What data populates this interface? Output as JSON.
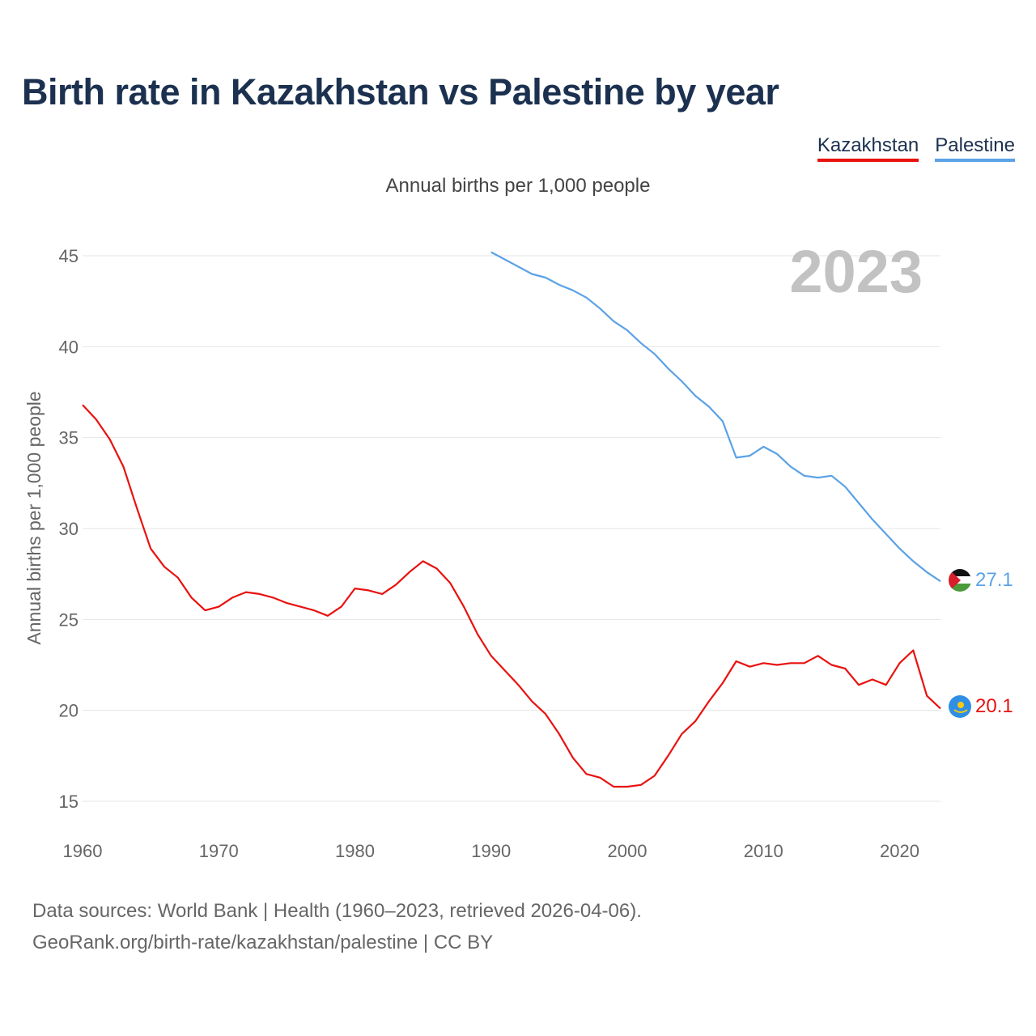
{
  "title": "Birth rate in Kazakhstan vs Palestine by year",
  "legend": [
    {
      "name": "Kazakhstan",
      "color": "#e8120f"
    },
    {
      "name": "Palestine",
      "color": "#5ba2e6"
    }
  ],
  "subtitle": "Annual births per 1,000 people",
  "sources": {
    "line1": "Data sources: World Bank | Health (1960–2023, retrieved 2026-04-06).",
    "line2": "GeoRank.org/birth-rate/kazakhstan/palestine | CC BY"
  },
  "chart_data": {
    "type": "line",
    "title": "Birth rate in Kazakhstan vs Palestine by year",
    "subtitle": "Annual births per 1,000 people",
    "xlabel": "",
    "ylabel": "Annual births per 1,000 people",
    "xlim": [
      1960,
      2023
    ],
    "ylim": [
      14,
      47
    ],
    "x_ticks": [
      1960,
      1970,
      1980,
      1990,
      2000,
      2010,
      2020
    ],
    "y_ticks": [
      15,
      20,
      25,
      30,
      35,
      40,
      45
    ],
    "grid": true,
    "year_badge": "2023",
    "series": [
      {
        "name": "Kazakhstan",
        "color": "#e8120f",
        "end_label": "20.1",
        "start_year": 1960,
        "values": [
          36.8,
          36.0,
          34.9,
          33.4,
          31.1,
          28.9,
          27.9,
          27.3,
          26.2,
          25.5,
          25.7,
          26.2,
          26.5,
          26.4,
          26.2,
          25.9,
          25.7,
          25.5,
          25.2,
          25.7,
          26.7,
          26.6,
          26.4,
          26.9,
          27.6,
          28.2,
          27.8,
          27.0,
          25.7,
          24.2,
          23.0,
          22.2,
          21.4,
          20.5,
          19.8,
          18.7,
          17.4,
          16.5,
          16.3,
          15.8,
          15.8,
          15.9,
          16.4,
          17.5,
          18.7,
          19.4,
          20.5,
          21.5,
          22.7,
          22.4,
          22.6,
          22.5,
          22.6,
          22.6,
          23.0,
          22.5,
          22.3,
          21.4,
          21.7,
          21.4,
          22.6,
          23.3,
          20.8,
          20.1
        ]
      },
      {
        "name": "Palestine",
        "color": "#5ba2e6",
        "end_label": "27.1",
        "start_year": 1990,
        "values": [
          45.2,
          44.8,
          44.4,
          44.0,
          43.8,
          43.4,
          43.1,
          42.7,
          42.1,
          41.4,
          40.9,
          40.2,
          39.6,
          38.8,
          38.1,
          37.3,
          36.7,
          35.9,
          33.9,
          34.0,
          34.5,
          34.1,
          33.4,
          32.9,
          32.8,
          32.9,
          32.3,
          31.4,
          30.5,
          29.7,
          28.9,
          28.2,
          27.6,
          27.1
        ]
      }
    ]
  }
}
